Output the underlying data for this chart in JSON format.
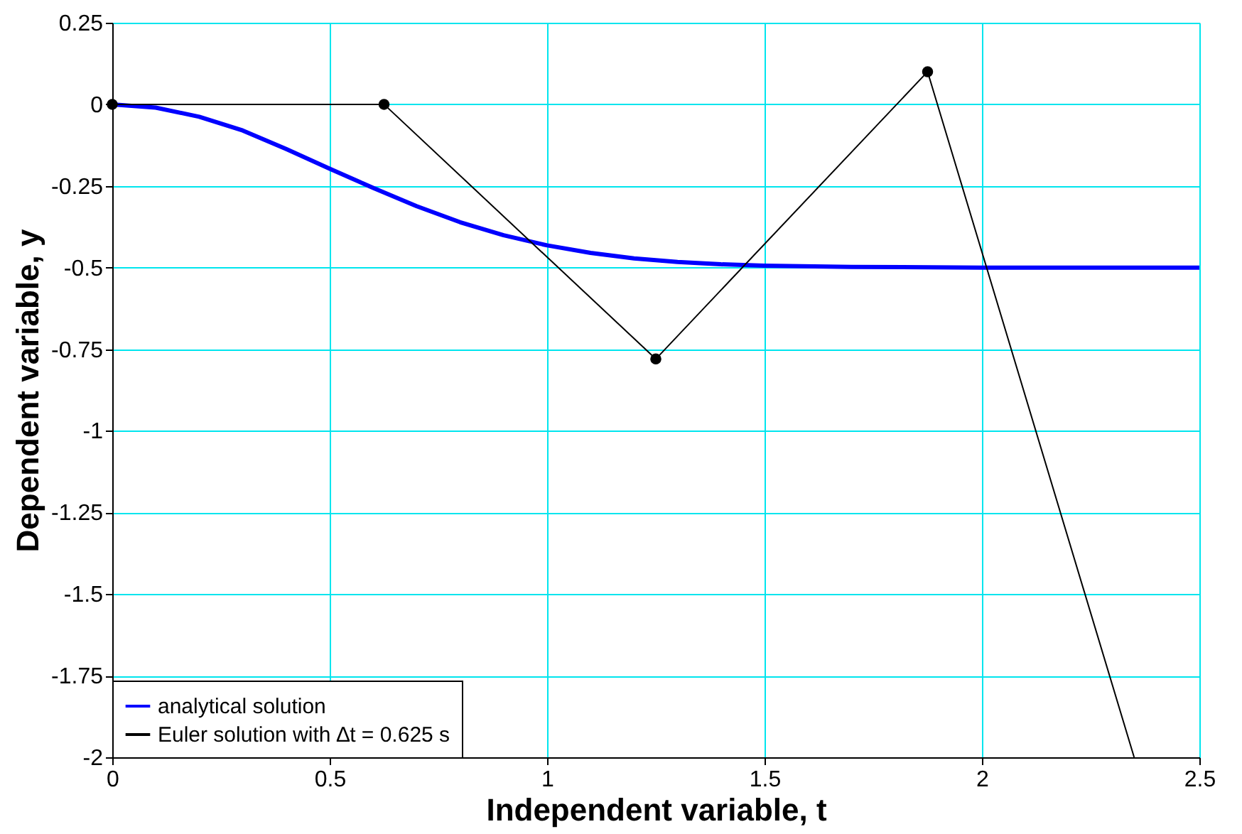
{
  "chart_data": {
    "type": "line",
    "xlabel": "Independent variable, t",
    "ylabel": "Dependent variable, y",
    "xlim": [
      0,
      2.5
    ],
    "ylim": [
      -2,
      0.25
    ],
    "xticks": [
      0,
      0.5,
      1,
      1.5,
      2,
      2.5
    ],
    "yticks": [
      -2,
      -1.75,
      -1.5,
      -1.25,
      -1,
      -0.75,
      -0.5,
      -0.25,
      0,
      0.25
    ],
    "grid": true,
    "legend": "bottom left",
    "series": [
      {
        "name": "analytical solution",
        "color": "#0000ff",
        "marker": "none",
        "x": [
          0,
          0.1,
          0.2,
          0.3,
          0.4,
          0.5,
          0.6,
          0.7,
          0.8,
          0.9,
          1.0,
          1.1,
          1.2,
          1.3,
          1.4,
          1.5,
          1.7,
          2.0,
          2.5
        ],
        "values": [
          0,
          -0.01,
          -0.038,
          -0.08,
          -0.137,
          -0.197,
          -0.256,
          -0.312,
          -0.361,
          -0.401,
          -0.432,
          -0.455,
          -0.472,
          -0.483,
          -0.49,
          -0.494,
          -0.498,
          -0.5,
          -0.5
        ]
      },
      {
        "name": "Euler solution with ∆t = 0.625 s",
        "color": "#000000",
        "marker": "circle",
        "x": [
          0,
          0.625,
          1.25,
          1.875,
          2.35
        ],
        "values": [
          0,
          0,
          -0.78,
          0.1,
          -2
        ]
      }
    ]
  }
}
